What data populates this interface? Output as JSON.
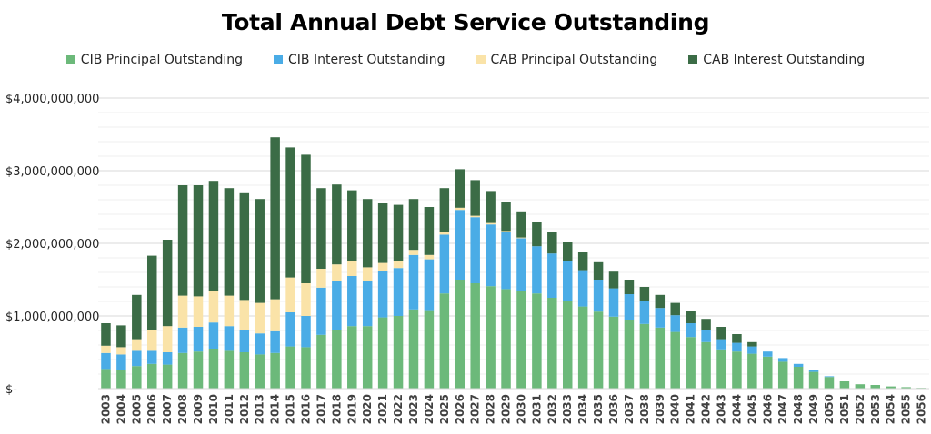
{
  "chart_data": {
    "type": "bar",
    "stacked": true,
    "title": "Total Annual Debt Service Outstanding",
    "xlabel": "",
    "ylabel": "",
    "ylim": [
      0,
      4000000000
    ],
    "yticks": [
      0,
      1000000000,
      2000000000,
      3000000000,
      4000000000
    ],
    "ytick_labels": [
      "$-",
      "$1,000,000,000",
      "$2,000,000,000",
      "$3,000,000,000",
      "$4,000,000,000"
    ],
    "grid": true,
    "legend_position": "top",
    "categories": [
      "2003",
      "2004",
      "2005",
      "2006",
      "2007",
      "2008",
      "2009",
      "2010",
      "2011",
      "2012",
      "2013",
      "2014",
      "2015",
      "2016",
      "2017",
      "2018",
      "2019",
      "2020",
      "2021",
      "2022",
      "2023",
      "2024",
      "2025",
      "2026",
      "2027",
      "2028",
      "2029",
      "2030",
      "2031",
      "2032",
      "2033",
      "2034",
      "2035",
      "2036",
      "2037",
      "2038",
      "2039",
      "2040",
      "2041",
      "2042",
      "2043",
      "2044",
      "2045",
      "2046",
      "2047",
      "2048",
      "2049",
      "2050",
      "2051",
      "2052",
      "2053",
      "2054",
      "2055",
      "2056"
    ],
    "series": [
      {
        "name": "CIB Principal Outstanding",
        "color": "#6cb97a",
        "values": [
          270000000,
          260000000,
          310000000,
          340000000,
          330000000,
          490000000,
          510000000,
          550000000,
          520000000,
          500000000,
          470000000,
          490000000,
          580000000,
          570000000,
          740000000,
          800000000,
          860000000,
          860000000,
          980000000,
          1000000000,
          1090000000,
          1080000000,
          1310000000,
          1500000000,
          1450000000,
          1410000000,
          1370000000,
          1350000000,
          1310000000,
          1250000000,
          1200000000,
          1130000000,
          1060000000,
          990000000,
          950000000,
          890000000,
          840000000,
          780000000,
          710000000,
          640000000,
          540000000,
          510000000,
          480000000,
          440000000,
          370000000,
          300000000,
          230000000,
          160000000,
          100000000,
          60000000,
          50000000,
          30000000,
          20000000,
          10000000
        ]
      },
      {
        "name": "CIB Interest Outstanding",
        "color": "#4aace6",
        "values": [
          220000000,
          210000000,
          210000000,
          180000000,
          170000000,
          350000000,
          340000000,
          360000000,
          340000000,
          300000000,
          290000000,
          300000000,
          470000000,
          430000000,
          650000000,
          680000000,
          690000000,
          620000000,
          640000000,
          660000000,
          750000000,
          700000000,
          810000000,
          960000000,
          910000000,
          850000000,
          790000000,
          720000000,
          650000000,
          610000000,
          560000000,
          500000000,
          440000000,
          390000000,
          350000000,
          320000000,
          270000000,
          230000000,
          190000000,
          160000000,
          140000000,
          120000000,
          100000000,
          70000000,
          50000000,
          40000000,
          20000000,
          10000000,
          0,
          0,
          0,
          0,
          0,
          0
        ]
      },
      {
        "name": "CAB Principal Outstanding",
        "color": "#fae3a8",
        "values": [
          100000000,
          100000000,
          160000000,
          280000000,
          360000000,
          440000000,
          420000000,
          430000000,
          420000000,
          420000000,
          420000000,
          440000000,
          480000000,
          450000000,
          260000000,
          230000000,
          210000000,
          190000000,
          110000000,
          100000000,
          70000000,
          60000000,
          30000000,
          30000000,
          20000000,
          20000000,
          10000000,
          10000000,
          0,
          0,
          0,
          0,
          0,
          0,
          0,
          0,
          0,
          0,
          0,
          0,
          0,
          0,
          0,
          0,
          0,
          0,
          0,
          0,
          0,
          0,
          0,
          0,
          0,
          0
        ]
      },
      {
        "name": "CAB Interest Outstanding",
        "color": "#3b6c46",
        "values": [
          310000000,
          300000000,
          610000000,
          1030000000,
          1190000000,
          1520000000,
          1530000000,
          1520000000,
          1480000000,
          1470000000,
          1430000000,
          2230000000,
          1790000000,
          1770000000,
          1110000000,
          1100000000,
          970000000,
          940000000,
          820000000,
          770000000,
          700000000,
          660000000,
          610000000,
          530000000,
          490000000,
          440000000,
          400000000,
          360000000,
          340000000,
          300000000,
          260000000,
          250000000,
          240000000,
          230000000,
          200000000,
          190000000,
          180000000,
          170000000,
          170000000,
          160000000,
          170000000,
          120000000,
          60000000,
          0,
          0,
          0,
          0,
          0,
          0,
          0,
          0,
          0,
          0,
          0
        ]
      }
    ]
  }
}
